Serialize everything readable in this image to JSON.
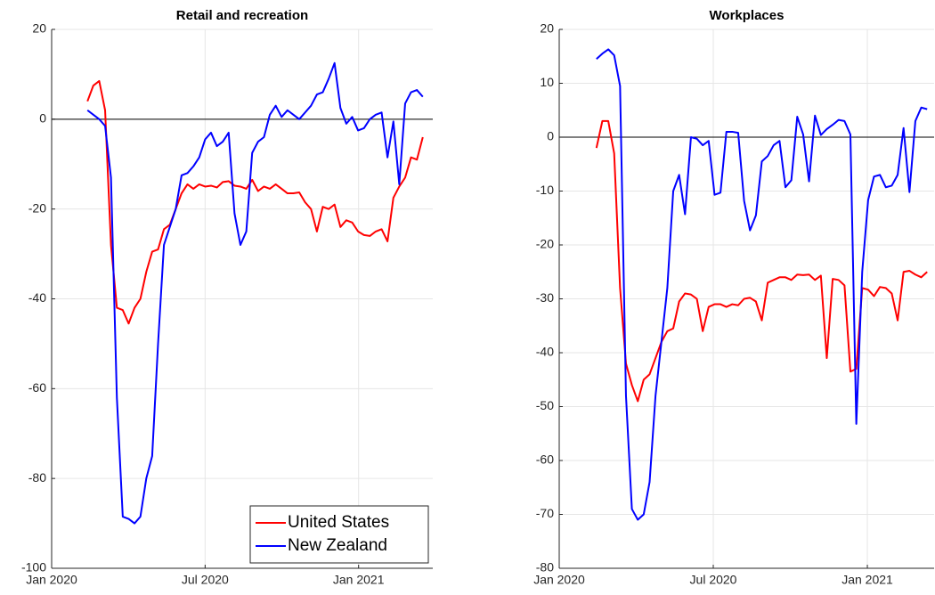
{
  "chart_data": [
    {
      "type": "line",
      "title": "Retail and recreation",
      "x": [
        1.4,
        1.63,
        1.86,
        2.09,
        2.32,
        2.55,
        2.78,
        3.01,
        3.24,
        3.47,
        3.7,
        3.93,
        4.16,
        4.39,
        4.62,
        4.85,
        5.08,
        5.31,
        5.54,
        5.77,
        6.0,
        6.23,
        6.46,
        6.69,
        6.92,
        7.15,
        7.38,
        7.61,
        7.84,
        8.07,
        8.3,
        8.53,
        8.76,
        8.99,
        9.22,
        9.45,
        9.68,
        9.91,
        10.14,
        10.37,
        10.6,
        10.83,
        11.06,
        11.29,
        11.52,
        11.75,
        11.98,
        12.21,
        12.44,
        12.67,
        12.9,
        13.13,
        13.36,
        13.59,
        13.82,
        14.05,
        14.28,
        14.51
      ],
      "series": [
        {
          "name": "United States",
          "color": "#ff0000",
          "values": [
            4,
            7.5,
            8.5,
            2,
            -28,
            -42,
            -42.5,
            -45.5,
            -42,
            -40,
            -34,
            -29.5,
            -29,
            -24.5,
            -23.5,
            -20,
            -16.5,
            -14.5,
            -15.5,
            -14.5,
            -15,
            -14.8,
            -15.2,
            -14,
            -13.8,
            -14.8,
            -15,
            -15.5,
            -13.5,
            -16,
            -15,
            -15.5,
            -14.5,
            -15.5,
            -16.5,
            -16.5,
            -16.3,
            -18.5,
            -20,
            -25,
            -19.5,
            -20,
            -19,
            -24,
            -22.5,
            -23,
            -25,
            -25.8,
            -26,
            -25,
            -24.5,
            -27.2,
            -17.5,
            -15,
            -13,
            -8.5,
            -9,
            -4
          ]
        },
        {
          "name": "New Zealand",
          "color": "#0000ff",
          "values": [
            2,
            1,
            0,
            -1.5,
            -13,
            -62,
            -88.5,
            -89,
            -90,
            -88.5,
            -80,
            -75,
            -50,
            -28,
            -24,
            -20,
            -12.5,
            -12,
            -10.5,
            -8.5,
            -4.5,
            -3,
            -6,
            -5,
            -3,
            -21,
            -28,
            -25,
            -7.5,
            -5,
            -4,
            1,
            3,
            0.5,
            2,
            1,
            0,
            1.5,
            3,
            5.5,
            6,
            9,
            12.5,
            2.5,
            -1,
            0.5,
            -2.5,
            -2,
            0,
            1,
            1.5,
            -8.5,
            -0.5,
            -14.5,
            3.5,
            6,
            6.5,
            5
          ]
        }
      ],
      "xlim": [
        0,
        14.9
      ],
      "xticks": [
        {
          "value": 0,
          "label": "Jan 2020"
        },
        {
          "value": 6,
          "label": "Jul 2020"
        },
        {
          "value": 12,
          "label": "Jan 2021"
        }
      ],
      "ylim": [
        -100,
        20
      ],
      "yticks": [
        -100,
        -80,
        -60,
        -40,
        -20,
        0,
        20
      ],
      "grid": true,
      "legend": "lower right"
    },
    {
      "type": "line",
      "title": "Workplaces",
      "x": [
        1.45,
        1.68,
        1.91,
        2.14,
        2.37,
        2.6,
        2.83,
        3.06,
        3.29,
        3.52,
        3.75,
        3.98,
        4.21,
        4.44,
        4.67,
        4.9,
        5.13,
        5.36,
        5.59,
        5.82,
        6.05,
        6.28,
        6.51,
        6.74,
        6.97,
        7.2,
        7.43,
        7.66,
        7.89,
        8.12,
        8.35,
        8.58,
        8.81,
        9.04,
        9.27,
        9.5,
        9.73,
        9.96,
        10.19,
        10.42,
        10.65,
        10.88,
        11.11,
        11.34,
        11.57,
        11.8,
        12.03,
        12.26,
        12.49,
        12.72,
        12.95,
        13.18,
        13.41,
        13.64,
        13.87,
        14.1,
        14.33
      ],
      "series": [
        {
          "color": "#ff0000",
          "values": [
            -2,
            3,
            3,
            -3,
            -28,
            -42,
            -46,
            -49,
            -45,
            -44,
            -41,
            -38,
            -36,
            -35.5,
            -30.5,
            -29,
            -29.2,
            -30,
            -36,
            -31.5,
            -31,
            -31,
            -31.5,
            -31,
            -31.2,
            -30,
            -29.8,
            -30.5,
            -34,
            -27,
            -26.5,
            -26,
            -26,
            -26.5,
            -25.5,
            -25.6,
            -25.5,
            -26.5,
            -25.7,
            -41,
            -26.3,
            -26.5,
            -27.5,
            -43.5,
            -43,
            -28,
            -28.3,
            -29.5,
            -27.8,
            -28,
            -29,
            -34,
            -25,
            -24.8,
            -25.5,
            -26,
            -25
          ]
        },
        {
          "color": "#0000ff",
          "values": [
            14.5,
            15.5,
            16.3,
            15.2,
            9.5,
            -48,
            -69,
            -71,
            -70,
            -64,
            -48,
            -38,
            -28,
            -10,
            -7,
            -14.3,
            0,
            -0.3,
            -1.5,
            -0.7,
            -10.7,
            -10.3,
            1,
            1,
            0.8,
            -11.8,
            -17.3,
            -14.5,
            -4.5,
            -3.5,
            -1.5,
            -0.7,
            -9.3,
            -8,
            3.8,
            0.5,
            -8.2,
            4,
            0.4,
            1.5,
            2.3,
            3.2,
            3,
            0.5,
            -53.2,
            -25,
            -11.7,
            -7.3,
            -7,
            -9.3,
            -9,
            -7,
            1.7,
            -10.2,
            3,
            5.5,
            5.2
          ]
        }
      ],
      "xlim": [
        0,
        14.6
      ],
      "xticks": [
        {
          "value": 0,
          "label": "Jan 2020"
        },
        {
          "value": 6,
          "label": "Jul 2020"
        },
        {
          "value": 12,
          "label": "Jan 2021"
        }
      ],
      "ylim": [
        -80,
        20
      ],
      "yticks": [
        -80,
        -70,
        -60,
        -50,
        -40,
        -30,
        -20,
        -10,
        0,
        10,
        20
      ],
      "grid": true
    }
  ]
}
